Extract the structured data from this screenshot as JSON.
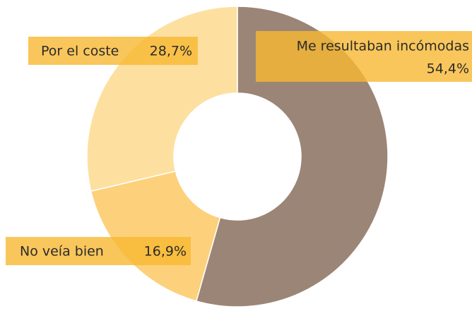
{
  "chart_data": {
    "type": "donut",
    "categories": [
      "Me resultaban incómodas",
      "No veía bien",
      "Por el coste"
    ],
    "values": [
      54.4,
      16.9,
      28.7
    ],
    "value_labels": [
      "54,4%",
      "16,9%",
      "28,7%"
    ],
    "colors": [
      "#9b8576",
      "#fdd07b",
      "#fde0a0"
    ]
  }
}
